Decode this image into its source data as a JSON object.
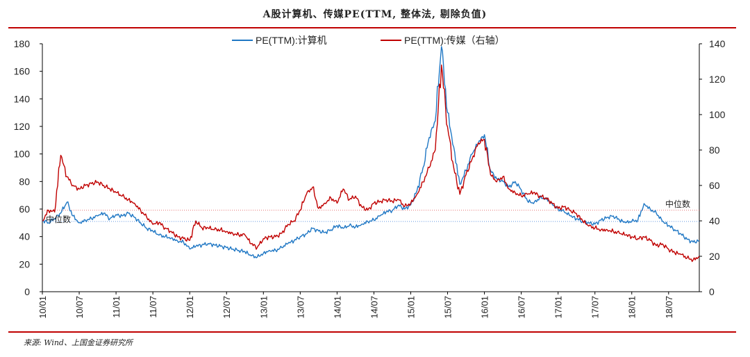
{
  "header": {
    "title": "A股计算机、传媒PE(TTM, 整体法, 剔除负值)"
  },
  "footer": {
    "source": "来源: Wind、上国金证券研究所"
  },
  "colors": {
    "computer": "#1f77c4",
    "media": "#c00000",
    "rule": "#c00000",
    "median_computer": "#2e75d6",
    "median_media": "#e06060"
  },
  "chart_data": {
    "type": "line",
    "title": "A股计算机、传媒PE(TTM, 整体法, 剔除负值)",
    "x_ticks": [
      "10/01",
      "10/07",
      "11/01",
      "11/07",
      "12/01",
      "12/07",
      "13/01",
      "13/07",
      "14/01",
      "14/07",
      "15/01",
      "15/07",
      "16/01",
      "16/07",
      "17/01",
      "17/07",
      "18/01",
      "18/07"
    ],
    "x_range": [
      "2010-01",
      "2018-12"
    ],
    "y_left": {
      "ticks": [
        0,
        20,
        40,
        60,
        80,
        100,
        120,
        140,
        160,
        180
      ],
      "range": [
        0,
        180
      ]
    },
    "y_right": {
      "ticks": [
        0,
        20,
        40,
        60,
        80,
        100,
        120,
        140
      ],
      "range": [
        0,
        140
      ]
    },
    "legend_position": "top-center",
    "series": [
      {
        "name": "PE(TTM):计算机",
        "axis": "left",
        "color": "#1f77c4",
        "points": [
          [
            "2010-01",
            52
          ],
          [
            "2010-02",
            50
          ],
          [
            "2010-03",
            53
          ],
          [
            "2010-04",
            57
          ],
          [
            "2010-05",
            65
          ],
          [
            "2010-06",
            55
          ],
          [
            "2010-07",
            50
          ],
          [
            "2010-08",
            52
          ],
          [
            "2010-09",
            53
          ],
          [
            "2010-10",
            55
          ],
          [
            "2010-11",
            57
          ],
          [
            "2010-12",
            53
          ],
          [
            "2011-01",
            56
          ],
          [
            "2011-02",
            55
          ],
          [
            "2011-03",
            57
          ],
          [
            "2011-04",
            54
          ],
          [
            "2011-05",
            50
          ],
          [
            "2011-06",
            46
          ],
          [
            "2011-07",
            44
          ],
          [
            "2011-08",
            41
          ],
          [
            "2011-09",
            40
          ],
          [
            "2011-10",
            39
          ],
          [
            "2011-11",
            37
          ],
          [
            "2011-12",
            36
          ],
          [
            "2012-01",
            31
          ],
          [
            "2012-02",
            33
          ],
          [
            "2012-03",
            34
          ],
          [
            "2012-04",
            35
          ],
          [
            "2012-05",
            34
          ],
          [
            "2012-06",
            33
          ],
          [
            "2012-07",
            32
          ],
          [
            "2012-08",
            31
          ],
          [
            "2012-09",
            30
          ],
          [
            "2012-10",
            29
          ],
          [
            "2012-11",
            26
          ],
          [
            "2012-12",
            25
          ],
          [
            "2013-01",
            28
          ],
          [
            "2013-02",
            30
          ],
          [
            "2013-03",
            30
          ],
          [
            "2013-04",
            32
          ],
          [
            "2013-05",
            35
          ],
          [
            "2013-06",
            37
          ],
          [
            "2013-07",
            40
          ],
          [
            "2013-08",
            42
          ],
          [
            "2013-09",
            46
          ],
          [
            "2013-10",
            44
          ],
          [
            "2013-11",
            43
          ],
          [
            "2013-12",
            45
          ],
          [
            "2014-01",
            48
          ],
          [
            "2014-02",
            46
          ],
          [
            "2014-03",
            48
          ],
          [
            "2014-04",
            47
          ],
          [
            "2014-05",
            49
          ],
          [
            "2014-06",
            51
          ],
          [
            "2014-07",
            52
          ],
          [
            "2014-08",
            55
          ],
          [
            "2014-09",
            58
          ],
          [
            "2014-10",
            59
          ],
          [
            "2014-11",
            63
          ],
          [
            "2014-12",
            60
          ],
          [
            "2015-01",
            63
          ],
          [
            "2015-02",
            73
          ],
          [
            "2015-03",
            90
          ],
          [
            "2015-04",
            112
          ],
          [
            "2015-05",
            124
          ],
          [
            "2015-06",
            178
          ],
          [
            "2015-07",
            130
          ],
          [
            "2015-08",
            105
          ],
          [
            "2015-09",
            78
          ],
          [
            "2015-10",
            88
          ],
          [
            "2015-11",
            100
          ],
          [
            "2015-12",
            108
          ],
          [
            "2016-01",
            114
          ],
          [
            "2016-02",
            88
          ],
          [
            "2016-03",
            82
          ],
          [
            "2016-04",
            80
          ],
          [
            "2016-05",
            76
          ],
          [
            "2016-06",
            80
          ],
          [
            "2016-07",
            74
          ],
          [
            "2016-08",
            66
          ],
          [
            "2016-09",
            64
          ],
          [
            "2016-10",
            68
          ],
          [
            "2016-11",
            68
          ],
          [
            "2016-12",
            64
          ],
          [
            "2017-01",
            60
          ],
          [
            "2017-02",
            58
          ],
          [
            "2017-03",
            55
          ],
          [
            "2017-04",
            53
          ],
          [
            "2017-05",
            51
          ],
          [
            "2017-06",
            50
          ],
          [
            "2017-07",
            49
          ],
          [
            "2017-08",
            52
          ],
          [
            "2017-09",
            54
          ],
          [
            "2017-10",
            55
          ],
          [
            "2017-11",
            52
          ],
          [
            "2017-12",
            50
          ],
          [
            "2018-01",
            51
          ],
          [
            "2018-02",
            52
          ],
          [
            "2018-03",
            64
          ],
          [
            "2018-04",
            60
          ],
          [
            "2018-05",
            57
          ],
          [
            "2018-06",
            51
          ],
          [
            "2018-07",
            48
          ],
          [
            "2018-08",
            45
          ],
          [
            "2018-09",
            42
          ],
          [
            "2018-10",
            38
          ],
          [
            "2018-11",
            36
          ],
          [
            "2018-12",
            37
          ]
        ]
      },
      {
        "name": "PE(TTM):传媒（右轴）",
        "axis": "right",
        "color": "#c00000",
        "points": [
          [
            "2010-01",
            40
          ],
          [
            "2010-02",
            46
          ],
          [
            "2010-03",
            45
          ],
          [
            "2010-04",
            77
          ],
          [
            "2010-05",
            65
          ],
          [
            "2010-06",
            60
          ],
          [
            "2010-07",
            58
          ],
          [
            "2010-08",
            60
          ],
          [
            "2010-09",
            61
          ],
          [
            "2010-10",
            62
          ],
          [
            "2010-11",
            60
          ],
          [
            "2010-12",
            58
          ],
          [
            "2011-01",
            56
          ],
          [
            "2011-02",
            54
          ],
          [
            "2011-03",
            52
          ],
          [
            "2011-04",
            50
          ],
          [
            "2011-05",
            46
          ],
          [
            "2011-06",
            42
          ],
          [
            "2011-07",
            38
          ],
          [
            "2011-08",
            39
          ],
          [
            "2011-09",
            36
          ],
          [
            "2011-10",
            34
          ],
          [
            "2011-11",
            31
          ],
          [
            "2011-12",
            30
          ],
          [
            "2012-01",
            29
          ],
          [
            "2012-02",
            40
          ],
          [
            "2012-03",
            36
          ],
          [
            "2012-04",
            36
          ],
          [
            "2012-05",
            35
          ],
          [
            "2012-06",
            35
          ],
          [
            "2012-07",
            34
          ],
          [
            "2012-08",
            33
          ],
          [
            "2012-09",
            32
          ],
          [
            "2012-10",
            32
          ],
          [
            "2012-11",
            27
          ],
          [
            "2012-12",
            25
          ],
          [
            "2013-01",
            30
          ],
          [
            "2013-02",
            31
          ],
          [
            "2013-03",
            31
          ],
          [
            "2013-04",
            33
          ],
          [
            "2013-05",
            38
          ],
          [
            "2013-06",
            40
          ],
          [
            "2013-07",
            46
          ],
          [
            "2013-08",
            55
          ],
          [
            "2013-09",
            59
          ],
          [
            "2013-10",
            47
          ],
          [
            "2013-11",
            50
          ],
          [
            "2013-12",
            53
          ],
          [
            "2014-01",
            50
          ],
          [
            "2014-02",
            58
          ],
          [
            "2014-03",
            52
          ],
          [
            "2014-04",
            54
          ],
          [
            "2014-05",
            48
          ],
          [
            "2014-06",
            46
          ],
          [
            "2014-07",
            50
          ],
          [
            "2014-08",
            51
          ],
          [
            "2014-09",
            52
          ],
          [
            "2014-10",
            51
          ],
          [
            "2014-11",
            52
          ],
          [
            "2014-12",
            48
          ],
          [
            "2015-01",
            50
          ],
          [
            "2015-02",
            55
          ],
          [
            "2015-03",
            62
          ],
          [
            "2015-04",
            70
          ],
          [
            "2015-05",
            80
          ],
          [
            "2015-06",
            128
          ],
          [
            "2015-07",
            93
          ],
          [
            "2015-08",
            70
          ],
          [
            "2015-09",
            55
          ],
          [
            "2015-10",
            66
          ],
          [
            "2015-11",
            75
          ],
          [
            "2015-12",
            84
          ],
          [
            "2016-01",
            86
          ],
          [
            "2016-02",
            66
          ],
          [
            "2016-03",
            62
          ],
          [
            "2016-04",
            65
          ],
          [
            "2016-05",
            58
          ],
          [
            "2016-06",
            56
          ],
          [
            "2016-07",
            54
          ],
          [
            "2016-08",
            55
          ],
          [
            "2016-09",
            56
          ],
          [
            "2016-10",
            54
          ],
          [
            "2016-11",
            53
          ],
          [
            "2016-12",
            50
          ],
          [
            "2017-01",
            47
          ],
          [
            "2017-02",
            48
          ],
          [
            "2017-03",
            46
          ],
          [
            "2017-04",
            44
          ],
          [
            "2017-05",
            40
          ],
          [
            "2017-06",
            37
          ],
          [
            "2017-07",
            36
          ],
          [
            "2017-08",
            35
          ],
          [
            "2017-09",
            35
          ],
          [
            "2017-10",
            34
          ],
          [
            "2017-11",
            33
          ],
          [
            "2017-12",
            32
          ],
          [
            "2018-01",
            31
          ],
          [
            "2018-02",
            30
          ],
          [
            "2018-03",
            31
          ],
          [
            "2018-04",
            29
          ],
          [
            "2018-05",
            26
          ],
          [
            "2018-06",
            27
          ],
          [
            "2018-07",
            24
          ],
          [
            "2018-08",
            22
          ],
          [
            "2018-09",
            21
          ],
          [
            "2018-10",
            19
          ],
          [
            "2018-11",
            18
          ],
          [
            "2018-12",
            20
          ]
        ]
      }
    ],
    "median_lines": [
      {
        "series": "PE(TTM):计算机",
        "axis": "left",
        "value": 51,
        "color": "#2e75d6"
      },
      {
        "series": "PE(TTM):传媒（右轴）",
        "axis": "right",
        "value": 46,
        "color": "#e06060"
      }
    ],
    "annotations": [
      "中位数",
      "中位数"
    ]
  }
}
